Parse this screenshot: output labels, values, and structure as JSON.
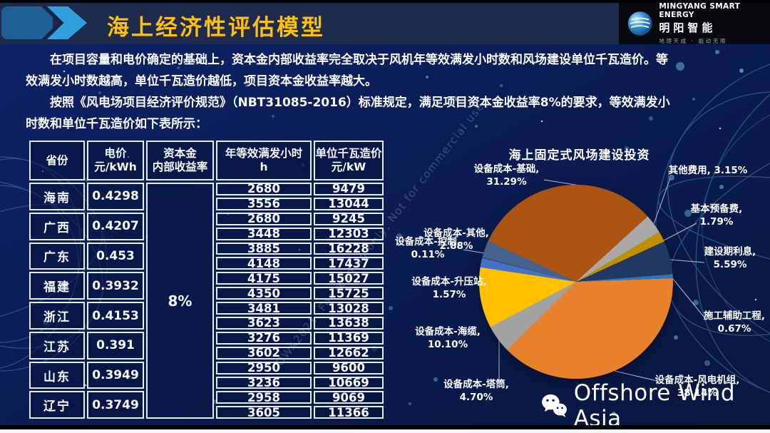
{
  "slide": {
    "title": "海上经济性评估模型",
    "logo": {
      "name": "MINGYANG SMART ENERGY",
      "cn": "明阳智能",
      "slogan": "地理天成 · 能动无限"
    },
    "paragraphs": [
      "在项目容量和电价确定的基础上，资本金内部收益率完全取决于风机年等效满发小时数和风场建设单位千瓦造价。等效满发小时数越高，单位千瓦造价越低，项目资本金收益率越大。",
      "按照《风电场项目经济评价规范》（NBT31085-2016）标准规定，满足项目资本金收益率8%的要求，等效满发小时数和单位千瓦造价如下表所示："
    ],
    "watermark_diagonal": "OWA2021: For reading only, Not for commercial use",
    "watermark_brand": "Offshore Wind Asia"
  },
  "table": {
    "columns": [
      {
        "l1": "省份",
        "l2": ""
      },
      {
        "l1": "电价",
        "l2": "元/kWh"
      },
      {
        "l1": "资本金",
        "l2": "内部收益率"
      },
      {
        "l1": "年等效满发小时",
        "l2": "h"
      },
      {
        "l1": "单位千瓦造价",
        "l2": "元/kW"
      }
    ],
    "irr_value": "8%",
    "provinces": [
      {
        "name": "海南",
        "price": "0.4298",
        "rows": [
          [
            "2680",
            "9479"
          ],
          [
            "3556",
            "13044"
          ]
        ]
      },
      {
        "name": "广西",
        "price": "0.4207",
        "rows": [
          [
            "2680",
            "9245"
          ],
          [
            "3448",
            "12303"
          ]
        ]
      },
      {
        "name": "广东",
        "price": "0.453",
        "rows": [
          [
            "3885",
            "16228"
          ],
          [
            "4148",
            "17437"
          ]
        ]
      },
      {
        "name": "福建",
        "price": "0.3932",
        "rows": [
          [
            "4175",
            "15027"
          ],
          [
            "4350",
            "15725"
          ]
        ]
      },
      {
        "name": "浙江",
        "price": "0.4153",
        "rows": [
          [
            "3481",
            "13028"
          ],
          [
            "3623",
            "13638"
          ]
        ]
      },
      {
        "name": "江苏",
        "price": "0.391",
        "rows": [
          [
            "3276",
            "11369"
          ],
          [
            "3602",
            "12662"
          ]
        ]
      },
      {
        "name": "山东",
        "price": "0.3949",
        "rows": [
          [
            "2950",
            "9600"
          ],
          [
            "3236",
            "10669"
          ]
        ]
      },
      {
        "name": "辽宁",
        "price": "0.3749",
        "rows": [
          [
            "2958",
            "9069"
          ],
          [
            "3605",
            "11366"
          ]
        ]
      }
    ]
  },
  "chart_data": {
    "type": "pie",
    "title": "海上固定式风场建设投资",
    "legend_position": "outside-labels",
    "start_angle_deg": 295,
    "slices": [
      {
        "name": "设备成本-基础",
        "value": 31.29,
        "color": "#AC5412",
        "wrap": 1,
        "label_pos": [
          88,
          34,
          155
        ],
        "leader": [
          218,
          57,
          293,
          69
        ]
      },
      {
        "name": "其他费用",
        "value": 3.15,
        "color": "#A9A9A9",
        "wrap": 0,
        "label_pos": [
          368,
          36,
          160
        ],
        "leader": [
          395,
          55,
          372,
          119
        ]
      },
      {
        "name": "基本预备费",
        "value": 1.79,
        "color": "#BE8F00",
        "wrap": 1,
        "label_pos": [
          385,
          90,
          150
        ],
        "leader": [
          432,
          118,
          386,
          142
        ]
      },
      {
        "name": "建设期利息",
        "value": 5.59,
        "color": "#1F3864",
        "wrap": 1,
        "label_pos": [
          404,
          150,
          150
        ],
        "leader": [
          443,
          173,
          395,
          169
        ]
      },
      {
        "name": "施工辅助工程",
        "value": 0.67,
        "color": "#2E75B6",
        "wrap": 1,
        "label_pos": [
          405,
          240,
          160
        ],
        "leader": [
          443,
          250,
          399,
          196
        ]
      },
      {
        "name": "设备成本-风电机组",
        "value": 38.14,
        "color": "#E8802C",
        "wrap": 1,
        "label_pos": [
          358,
          330,
          150
        ],
        "leader": [
          377,
          339,
          317,
          325
        ]
      },
      {
        "name": "设备成本-塔筒",
        "value": 4.7,
        "color": "#A2A2A2",
        "wrap": 1,
        "label_pos": [
          48,
          336,
          150
        ],
        "leader": [
          155,
          337,
          155,
          279
        ]
      },
      {
        "name": "设备成本-海缆",
        "value": 10.1,
        "color": "#FFC000",
        "wrap": 1,
        "label_pos": [
          8,
          262,
          150
        ],
        "leader": [
          155,
          269,
          131,
          222
        ]
      },
      {
        "name": "设备成本-升压站",
        "value": 1.57,
        "color": "#4472C4",
        "wrap": 1,
        "label_pos": [
          10,
          192,
          150
        ],
        "leader": [
          157,
          201,
          132,
          171
        ]
      },
      {
        "name": "设备成本-控制",
        "value": 0.11,
        "color": "#203864",
        "wrap": 1,
        "label_pos": [
          -20,
          136,
          150
        ],
        "leader": [
          105,
          155,
          141,
          161
        ]
      },
      {
        "name": "设备成本-其他",
        "value": 2.88,
        "color": "#44628C",
        "wrap": 1,
        "label_pos": [
          20,
          124,
          150
        ],
        "leader": [
          143,
          143,
          139,
          155
        ]
      }
    ]
  }
}
